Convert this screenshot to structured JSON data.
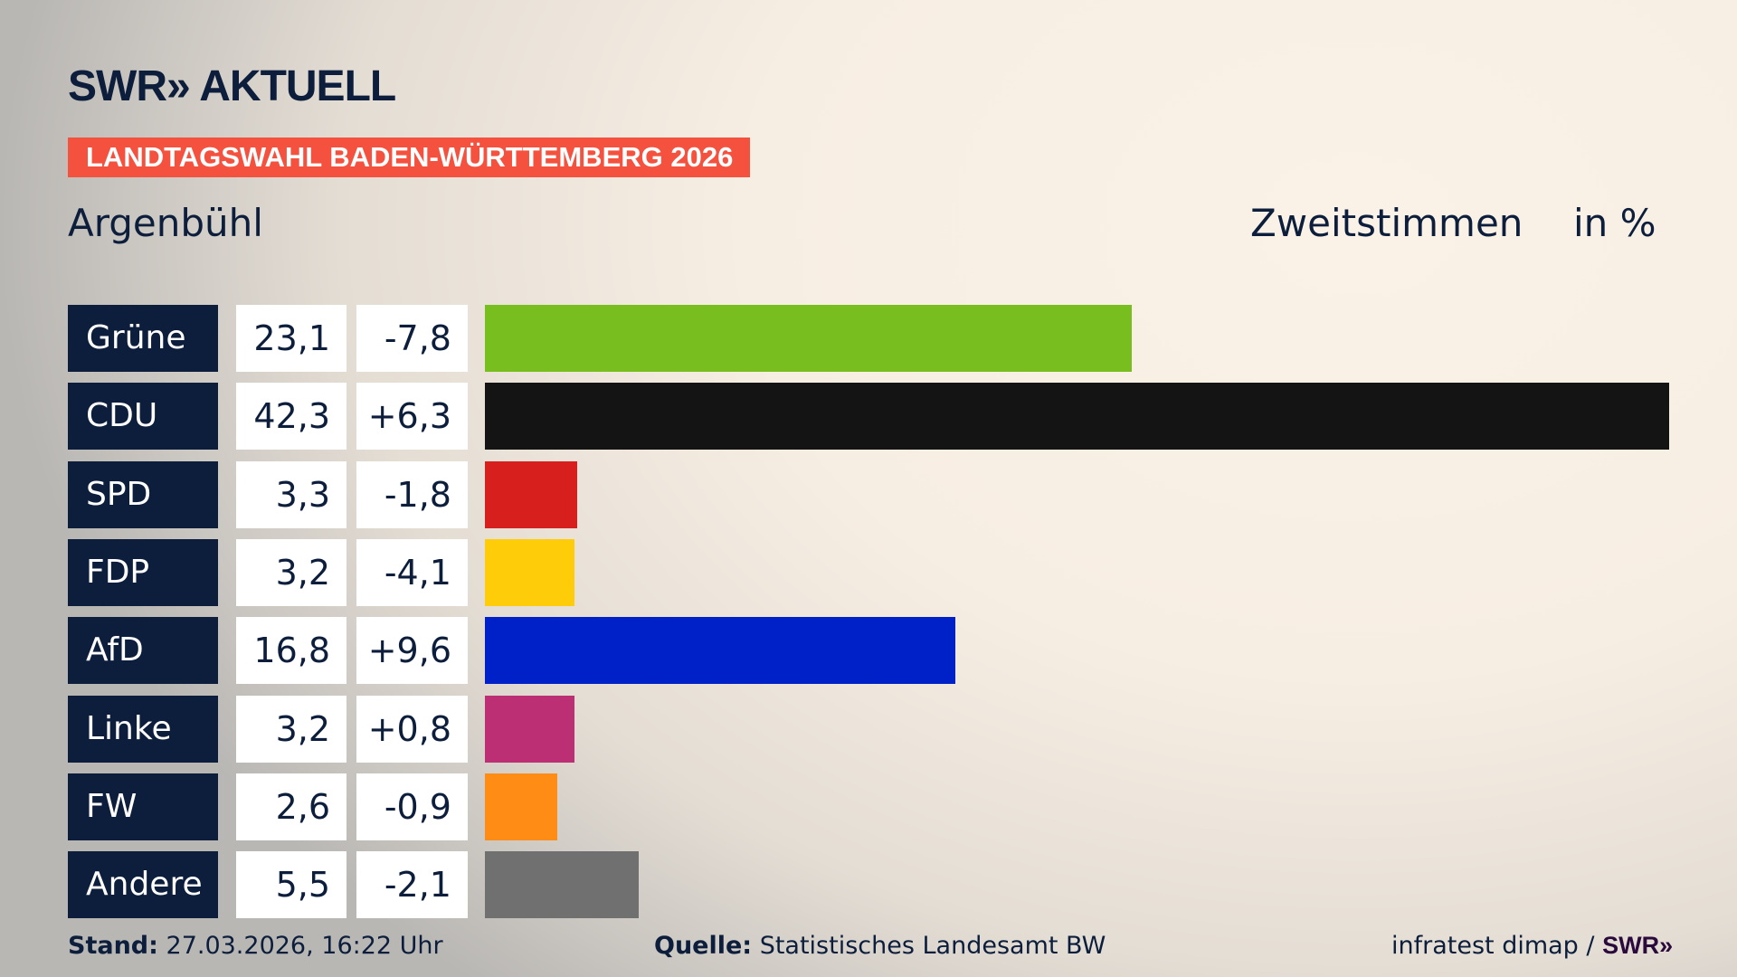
{
  "header": {
    "logo": "SWR» AKTUELL",
    "banner": "LANDTAGSWAHL BADEN-WÜRTTEMBERG 2026",
    "region": "Argenbühl",
    "measure": "Zweitstimmen",
    "unit": "in %"
  },
  "chart_data": {
    "type": "bar",
    "orientation": "horizontal",
    "categories": [
      "Grüne",
      "CDU",
      "SPD",
      "FDP",
      "AfD",
      "Linke",
      "FW",
      "Andere"
    ],
    "values": [
      23.1,
      42.3,
      3.3,
      3.2,
      16.8,
      3.2,
      2.6,
      5.5
    ],
    "value_labels": [
      "23,1",
      "42,3",
      "3,3",
      "3,2",
      "16,8",
      "3,2",
      "2,6",
      "5,5"
    ],
    "changes": [
      -7.8,
      6.3,
      -1.8,
      -4.1,
      9.6,
      0.8,
      -0.9,
      -2.1
    ],
    "change_labels": [
      "-7,8",
      "+6,3",
      "-1,8",
      "-4,1",
      "+9,6",
      "+0,8",
      "-0,9",
      "-2,1"
    ],
    "colors": [
      "#78be1e",
      "#141414",
      "#d7201e",
      "#ffcc0a",
      "#0020c8",
      "#bc2f74",
      "#ff8c14",
      "#707070"
    ],
    "xlim": [
      0,
      42.3
    ],
    "grid": false
  },
  "footer": {
    "stand_label": "Stand:",
    "stand_value": "27.03.2026, 16:22 Uhr",
    "source_label": "Quelle:",
    "source_value": "Statistisches Landesamt BW",
    "credit": "infratest dimap / ",
    "credit_logo": "SWR»"
  }
}
